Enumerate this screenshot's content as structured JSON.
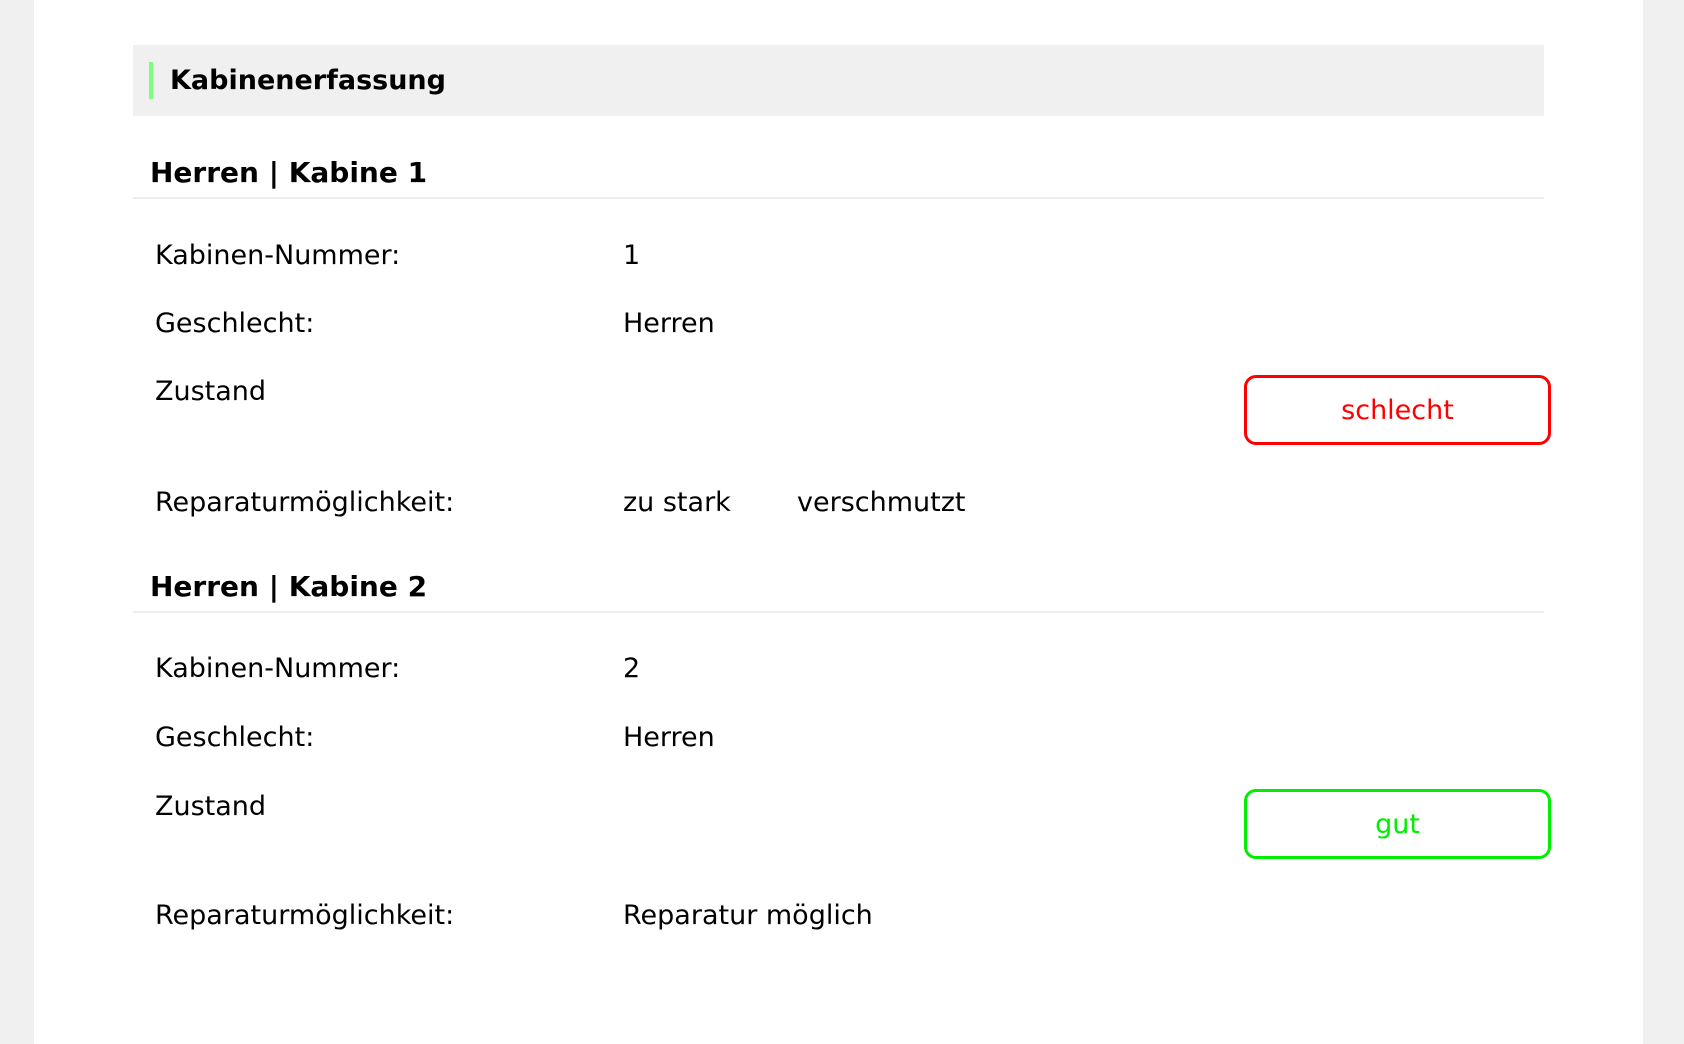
{
  "header": {
    "title": "Kabinenerfassung",
    "accent_color": "#7dff7d"
  },
  "labels": {
    "number": "Kabinen-Nummer:",
    "gender": "Geschlecht:",
    "condition": "Zustand",
    "repair": "Reparaturmöglichkeit:"
  },
  "cabins": [
    {
      "heading": "Herren | Kabine 1",
      "number": "1",
      "gender": "Herren",
      "condition": "schlecht",
      "condition_color": "#ff0000",
      "repair": [
        "zu stark",
        "verschmutzt"
      ]
    },
    {
      "heading": "Herren | Kabine 2",
      "number": "2",
      "gender": "Herren",
      "condition": "gut",
      "condition_color": "#00ee00",
      "repair": [
        "Reparatur möglich"
      ]
    }
  ]
}
